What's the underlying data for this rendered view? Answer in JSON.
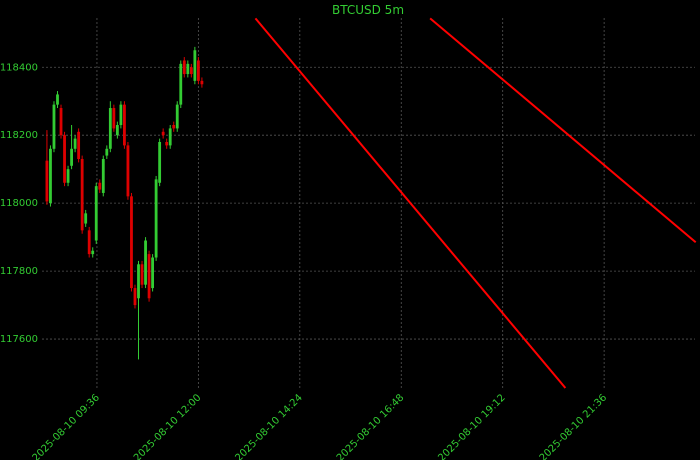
{
  "chart_data": {
    "type": "candlestick",
    "title": "BTCUSD 5m",
    "x_start": "2025-08-10 08:25",
    "interval_minutes": 5,
    "up_color": "#33cc33",
    "down_color": "#dd0000",
    "open": [
      118125,
      118000,
      118160,
      118290,
      118280,
      118200,
      118060,
      118110,
      118160,
      118210,
      118130,
      117940,
      117920,
      117850,
      117890,
      118060,
      118030,
      118140,
      118160,
      118280,
      118200,
      118230,
      118290,
      118170,
      118020,
      117750,
      117720,
      117820,
      117760,
      117850,
      117750,
      117840,
      118060,
      118210,
      118180,
      118170,
      118230,
      118220,
      118290,
      118420,
      118380,
      118400,
      118360,
      118420,
      118360
    ],
    "high": [
      118215,
      118170,
      118300,
      118330,
      118290,
      118210,
      118110,
      118230,
      118200,
      118220,
      118140,
      117980,
      117930,
      117870,
      118060,
      118070,
      118140,
      118170,
      118300,
      118290,
      118240,
      118300,
      118300,
      118180,
      118030,
      117760,
      117830,
      117830,
      117900,
      117860,
      117850,
      118080,
      118190,
      118220,
      118190,
      118230,
      118240,
      118300,
      118420,
      118430,
      118420,
      118410,
      118460,
      118430,
      118370
    ],
    "low": [
      117995,
      117990,
      118150,
      118280,
      118190,
      118050,
      118050,
      118100,
      118150,
      118120,
      117910,
      117930,
      117840,
      117840,
      117880,
      118030,
      118020,
      118130,
      118150,
      118210,
      118190,
      118220,
      118160,
      118010,
      117740,
      117690,
      117540,
      117750,
      117750,
      117710,
      117740,
      117830,
      118050,
      118190,
      118160,
      118160,
      118210,
      118210,
      118280,
      118370,
      118370,
      118370,
      118350,
      118350,
      118340
    ],
    "close": [
      118005,
      118160,
      118290,
      118320,
      118200,
      118060,
      118100,
      118160,
      118190,
      118130,
      117920,
      117970,
      117850,
      117860,
      118050,
      118040,
      118130,
      118160,
      118280,
      118220,
      118230,
      118290,
      118170,
      118020,
      117750,
      117700,
      117820,
      117760,
      117890,
      117720,
      117840,
      118070,
      118180,
      118200,
      118170,
      118220,
      118220,
      118290,
      118410,
      118380,
      118410,
      118380,
      118450,
      118360,
      118350
    ],
    "lines": [
      {
        "color": "#ff0000",
        "x": [
          "2025-08-10 13:21",
          "2025-08-10 20:41"
        ],
        "y": [
          118544,
          117456
        ]
      },
      {
        "color": "#ff0000",
        "x": [
          "2025-08-10 17:29",
          "2025-08-10 23:46"
        ],
        "y": [
          118544,
          117885
        ]
      }
    ],
    "xlim": [
      "2025-08-10 08:18",
      "2025-08-10 23:45"
    ],
    "xticks": [
      "2025-08-10 09:36",
      "2025-08-10 12:00",
      "2025-08-10 14:24",
      "2025-08-10 16:48",
      "2025-08-10 19:12",
      "2025-08-10 21:36"
    ],
    "ylim": [
      117450,
      118545
    ],
    "yticks": [
      117600,
      117800,
      118000,
      118200,
      118400
    ],
    "grid": true
  }
}
